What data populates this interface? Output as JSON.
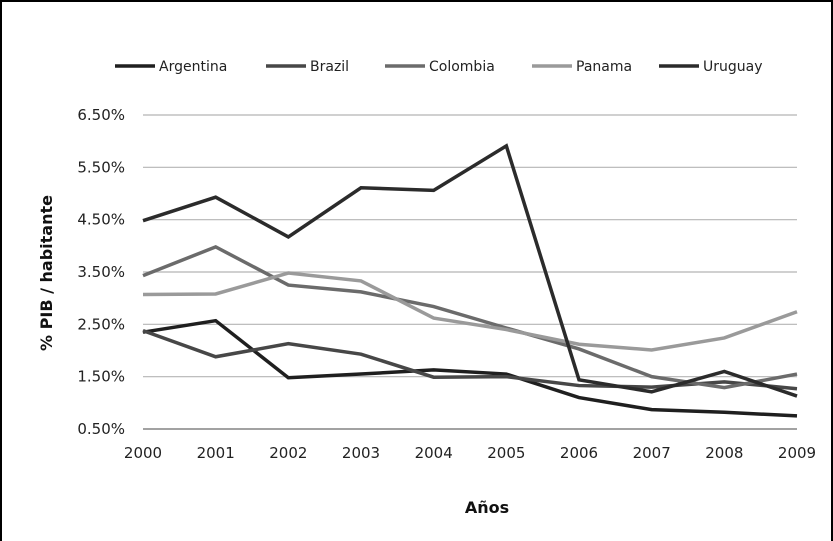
{
  "chart_data": {
    "type": "line",
    "title": "",
    "xlabel": "Años",
    "ylabel": "% PIB / habitante",
    "categories": [
      "2000",
      "2001",
      "2002",
      "2003",
      "2004",
      "2005",
      "2006",
      "2007",
      "2008",
      "2009"
    ],
    "ytick_labels": [
      "0.50%",
      "1.50%",
      "2.50%",
      "3.50%",
      "4.50%",
      "5.50%",
      "6.50%"
    ],
    "ylim": [
      0.5,
      6.5
    ],
    "grid": true,
    "legend_position": "top",
    "series": [
      {
        "name": "Argentina",
        "color": "#1f1f1f",
        "values": [
          2.35,
          2.57,
          1.48,
          1.55,
          1.63,
          1.55,
          1.1,
          0.87,
          0.82,
          0.75
        ]
      },
      {
        "name": "Brazil",
        "color": "#474747",
        "values": [
          2.38,
          1.88,
          2.13,
          1.93,
          1.49,
          1.5,
          1.33,
          1.3,
          1.4,
          1.27
        ]
      },
      {
        "name": "Colombia",
        "color": "#6b6b6b",
        "values": [
          3.43,
          3.98,
          3.25,
          3.12,
          2.84,
          2.43,
          2.03,
          1.5,
          1.29,
          1.55
        ]
      },
      {
        "name": "Panama",
        "color": "#9a9a9a",
        "values": [
          3.07,
          3.08,
          3.48,
          3.33,
          2.62,
          2.4,
          2.12,
          2.01,
          2.24,
          2.74
        ]
      },
      {
        "name": "Uruguay",
        "color": "#2b2b2b",
        "values": [
          4.48,
          4.93,
          4.17,
          5.11,
          5.06,
          5.91,
          1.44,
          1.21,
          1.6,
          1.13
        ]
      }
    ]
  }
}
